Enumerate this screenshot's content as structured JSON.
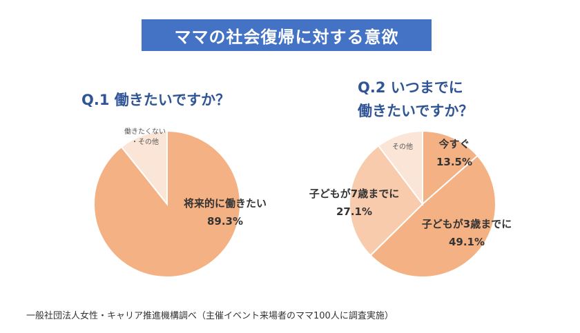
{
  "title": "ママの社会復帰に対する意欲",
  "q1": {
    "title": "Q.1 働きたいですか？"
  },
  "q2": {
    "title_line1": "Q.2 いつまでに",
    "title_line2": "働きたいですか？"
  },
  "source": "一般社団法人女性・キャリア推進機構調べ（主催イベント来場者のママ100人に調査実施）",
  "colors": {
    "title_bg": "#4472c4",
    "question_text": "#2f5597",
    "slice_main": "#f4b183",
    "slice_light": "#f8cbad",
    "slice_pale": "#fbe5d6"
  },
  "chart_data": [
    {
      "type": "pie",
      "title": "Q.1 働きたいですか？",
      "slices": [
        {
          "label": "将来的に働きたい",
          "value": 89.3,
          "display": "89.3%",
          "color": "#f4b183"
        },
        {
          "label_lines": [
            "働きたくない",
            "・その他"
          ],
          "value": 10.7,
          "display": "",
          "color": "#fbe5d6"
        }
      ]
    },
    {
      "type": "pie",
      "title": "Q.2 いつまでに 働きたいですか？",
      "slices": [
        {
          "label": "今すぐ",
          "value": 13.5,
          "display": "13.5%",
          "color": "#f4b183"
        },
        {
          "label": "子どもが3歳までに",
          "value": 49.1,
          "display": "49.1%",
          "color": "#f4b183"
        },
        {
          "label": "子どもが7歳までに",
          "value": 27.1,
          "display": "27.1%",
          "color": "#f8cbad"
        },
        {
          "label": "その他",
          "value": 10.3,
          "display": "",
          "color": "#fbe5d6"
        }
      ]
    }
  ]
}
